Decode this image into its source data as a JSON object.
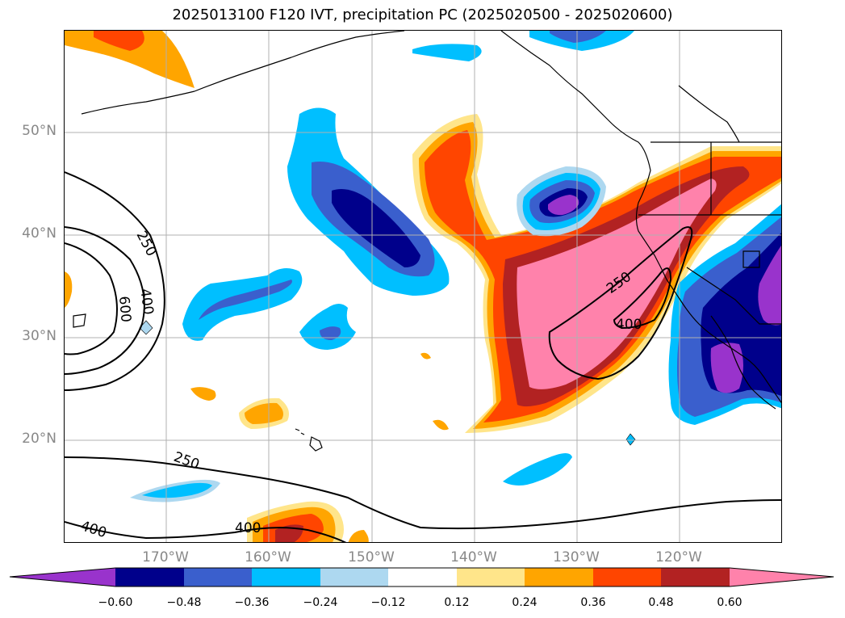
{
  "title": "2025013100 F120 IVT, precipitation PC (2025020500 - 2025020600)",
  "lat_labels": [
    "50°N",
    "40°N",
    "30°N",
    "20°N"
  ],
  "lon_labels": [
    "170°W",
    "160°W",
    "150°W",
    "140°W",
    "130°W",
    "120°W"
  ],
  "contour_labels": [
    "250",
    "400",
    "600",
    "250",
    "400",
    "250",
    "400",
    "400"
  ],
  "colorbar": {
    "tick_labels": [
      "−0.60",
      "−0.48",
      "−0.36",
      "−0.24",
      "−0.12",
      "0.12",
      "0.24",
      "0.36",
      "0.48",
      "0.60"
    ],
    "colors": [
      "#9933cc",
      "#00008b",
      "#3a5fcd",
      "#00bfff",
      "#add8f0",
      "#ffffff",
      "#ffe58a",
      "#ffa500",
      "#ff4500",
      "#b22222",
      "#ff82ab"
    ]
  }
}
